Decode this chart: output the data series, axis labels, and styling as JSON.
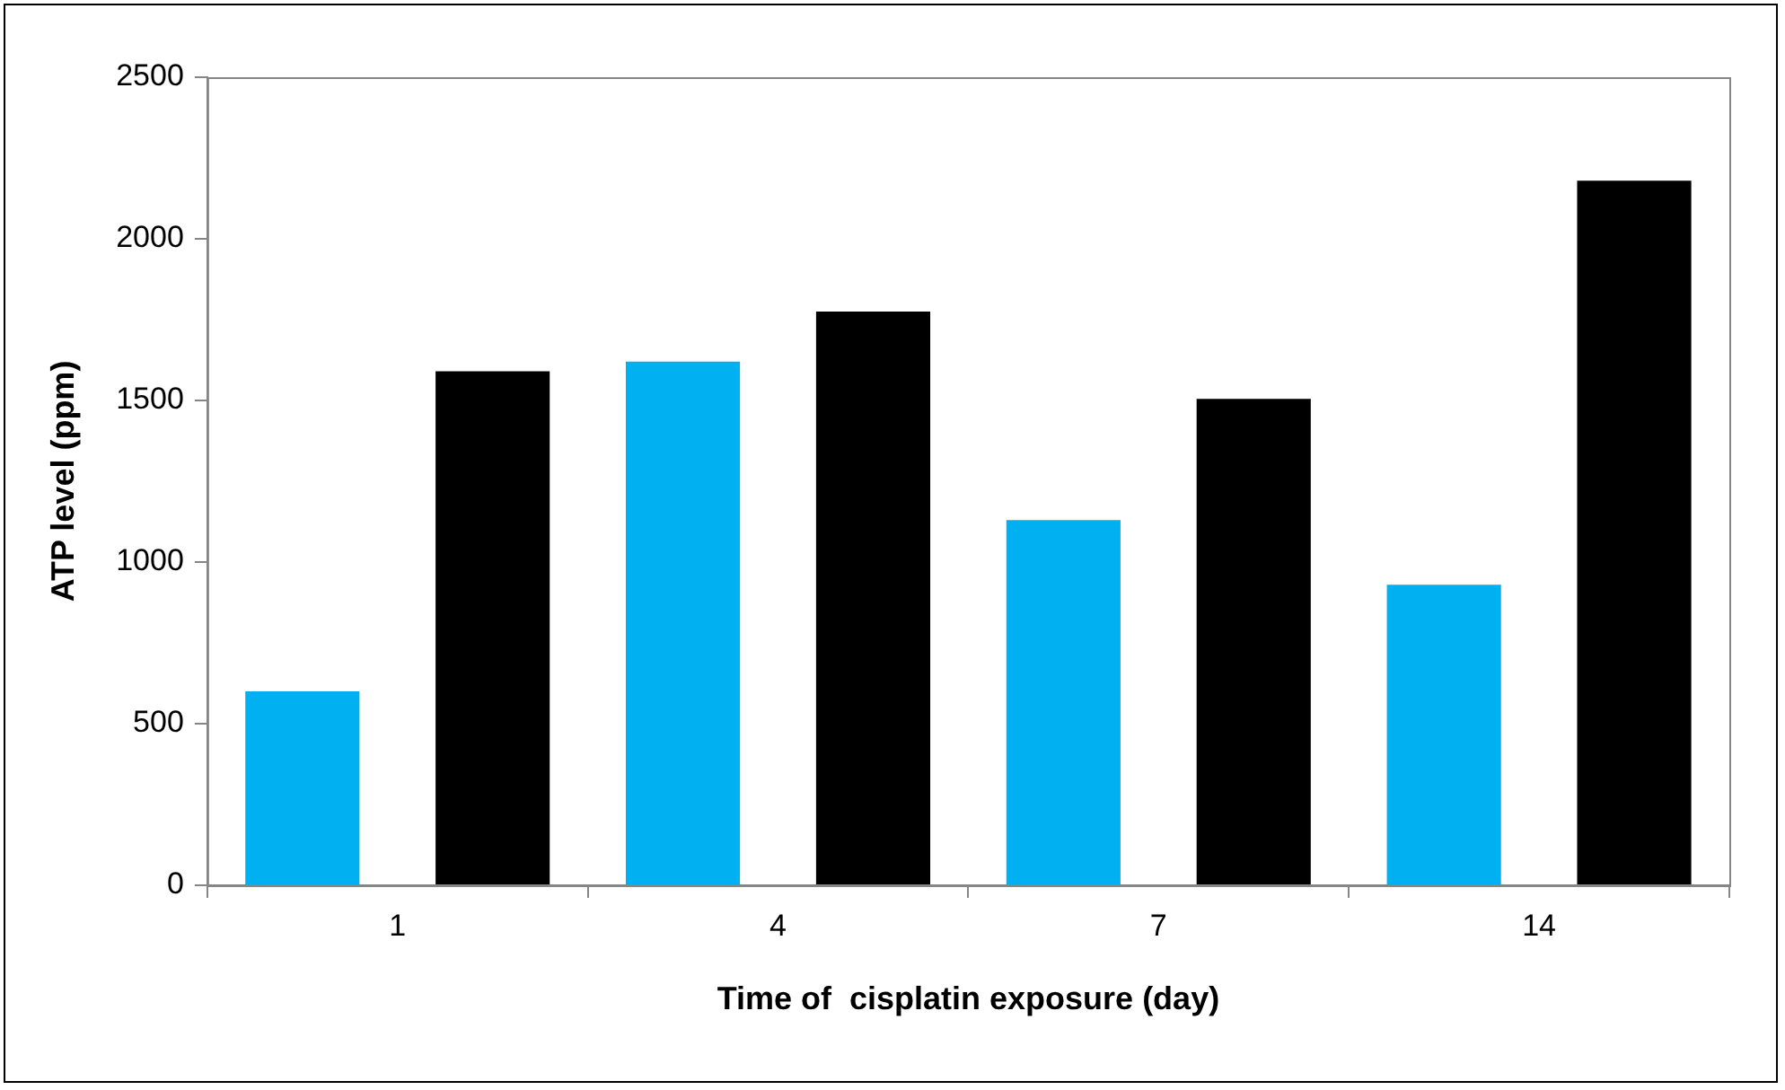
{
  "chart_data": {
    "type": "bar",
    "xlabel": "Time of  cisplatin exposure (day)",
    "ylabel": "ATP level (ppm)",
    "categories": [
      "1",
      "4",
      "7",
      "14"
    ],
    "series": [
      {
        "color": "#00b0f0",
        "values": [
          600,
          1620,
          1130,
          930
        ]
      },
      {
        "color": "#000000",
        "values": [
          1590,
          1775,
          1505,
          2180
        ]
      }
    ],
    "ylim": [
      0,
      2500
    ],
    "yticks": [
      0,
      500,
      1000,
      1500,
      2000,
      2500
    ],
    "grid": false,
    "legend": false
  }
}
